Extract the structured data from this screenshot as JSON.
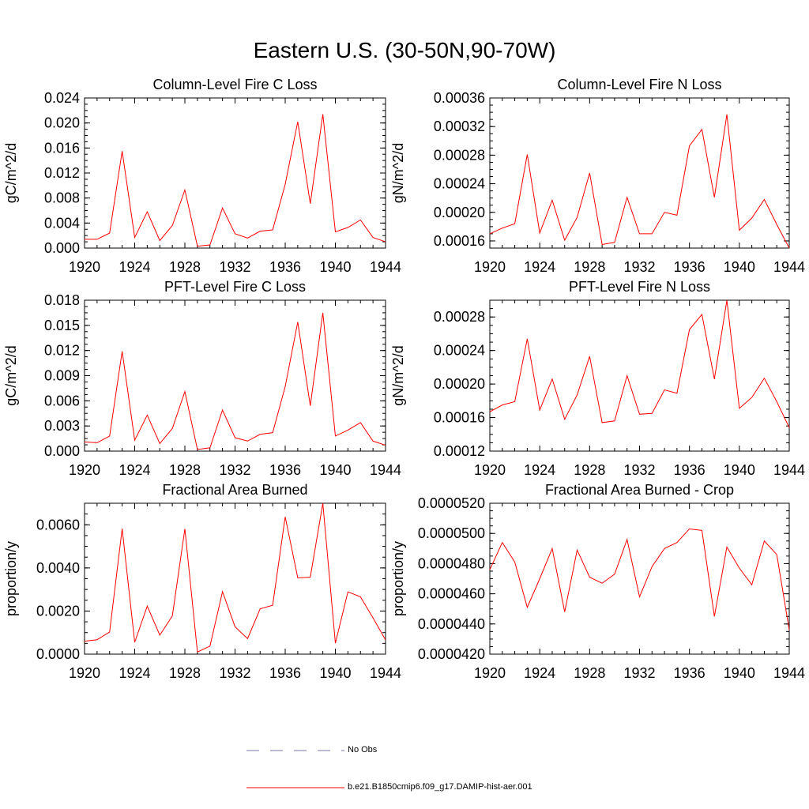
{
  "title": "Eastern U.S. (30-50N,90-70W)",
  "colors": {
    "model": "#ff0000",
    "obs": "#7777aa"
  },
  "legend": {
    "obs_label": "No Obs",
    "model_label": "b.e21.B1850cmip6.f09_g17.DAMIP-hist-aer.001"
  },
  "chart_data": [
    {
      "type": "line",
      "title": "Column-Level Fire C Loss",
      "ylabel": "gC/m^2/d",
      "xlim": [
        1920,
        1944
      ],
      "ylim": [
        0,
        0.024
      ],
      "xticks": [
        "1920",
        "1924",
        "1928",
        "1932",
        "1936",
        "1940",
        "1944"
      ],
      "yticks": [
        "0.000",
        "0.004",
        "0.008",
        "0.012",
        "0.016",
        "0.020",
        "0.024"
      ],
      "x": [
        1920,
        1921,
        1922,
        1923,
        1924,
        1925,
        1926,
        1927,
        1928,
        1929,
        1930,
        1931,
        1932,
        1933,
        1934,
        1935,
        1936,
        1937,
        1938,
        1939,
        1940,
        1941,
        1942,
        1943,
        1944
      ],
      "series": [
        {
          "values": [
            0.0014,
            0.0014,
            0.0024,
            0.0155,
            0.0017,
            0.0058,
            0.0012,
            0.0036,
            0.0093,
            0.0003,
            0.0005,
            0.0064,
            0.0023,
            0.0016,
            0.0027,
            0.0029,
            0.0102,
            0.0202,
            0.0071,
            0.0214,
            0.0026,
            0.0033,
            0.0045,
            0.0017,
            0.001
          ]
        }
      ]
    },
    {
      "type": "line",
      "title": "Column-Level Fire N Loss",
      "ylabel": "gN/m^2/d",
      "xlim": [
        1920,
        1944
      ],
      "ylim": [
        0.00015,
        0.00036
      ],
      "xticks": [
        "1920",
        "1924",
        "1928",
        "1932",
        "1936",
        "1940",
        "1944"
      ],
      "yticks": [
        "0.00016",
        "0.00020",
        "0.00024",
        "0.00028",
        "0.00032",
        "0.00036"
      ],
      "ytick_values": [
        0.00016,
        0.0002,
        0.00024,
        0.00028,
        0.00032,
        0.00036
      ],
      "x": [
        1920,
        1921,
        1922,
        1923,
        1924,
        1925,
        1926,
        1927,
        1928,
        1929,
        1930,
        1931,
        1932,
        1933,
        1934,
        1935,
        1936,
        1937,
        1938,
        1939,
        1940,
        1941,
        1942,
        1943,
        1944
      ],
      "series": [
        {
          "values": [
            0.00017,
            0.000178,
            0.000184,
            0.000281,
            0.000171,
            0.000217,
            0.000161,
            0.000193,
            0.000255,
            0.000155,
            0.000158,
            0.000221,
            0.00017,
            0.00017,
            0.0002,
            0.000196,
            0.000293,
            0.000316,
            0.000221,
            0.000337,
            0.000175,
            0.000192,
            0.000218,
            0.000183,
            0.00015
          ]
        }
      ]
    },
    {
      "type": "line",
      "title": "PFT-Level Fire C Loss",
      "ylabel": "gC/m^2/d",
      "xlim": [
        1920,
        1944
      ],
      "ylim": [
        0,
        0.018
      ],
      "xticks": [
        "1920",
        "1924",
        "1928",
        "1932",
        "1936",
        "1940",
        "1944"
      ],
      "yticks": [
        "0.000",
        "0.003",
        "0.006",
        "0.009",
        "0.012",
        "0.015",
        "0.018"
      ],
      "x": [
        1920,
        1921,
        1922,
        1923,
        1924,
        1925,
        1926,
        1927,
        1928,
        1929,
        1930,
        1931,
        1932,
        1933,
        1934,
        1935,
        1936,
        1937,
        1938,
        1939,
        1940,
        1941,
        1942,
        1943,
        1944
      ],
      "series": [
        {
          "values": [
            0.0011,
            0.001,
            0.0018,
            0.0119,
            0.0013,
            0.0043,
            0.0009,
            0.0027,
            0.0071,
            0.0002,
            0.0004,
            0.0049,
            0.0016,
            0.0012,
            0.002,
            0.0022,
            0.0077,
            0.0154,
            0.0054,
            0.0165,
            0.0018,
            0.0025,
            0.0034,
            0.0012,
            0.0007
          ]
        }
      ]
    },
    {
      "type": "line",
      "title": "PFT-Level Fire N Loss",
      "ylabel": "gN/m^2/d",
      "xlim": [
        1920,
        1944
      ],
      "ylim": [
        0.00012,
        0.0003
      ],
      "xticks": [
        "1920",
        "1924",
        "1928",
        "1932",
        "1936",
        "1940",
        "1944"
      ],
      "yticks": [
        "0.00012",
        "0.00016",
        "0.00020",
        "0.00024",
        "0.00028"
      ],
      "ytick_values": [
        0.00012,
        0.00016,
        0.0002,
        0.00024,
        0.00028
      ],
      "x": [
        1920,
        1921,
        1922,
        1923,
        1924,
        1925,
        1926,
        1927,
        1928,
        1929,
        1930,
        1931,
        1932,
        1933,
        1934,
        1935,
        1936,
        1937,
        1938,
        1939,
        1940,
        1941,
        1942,
        1943,
        1944
      ],
      "series": [
        {
          "values": [
            0.000167,
            0.000175,
            0.000179,
            0.000254,
            0.000169,
            0.000206,
            0.000158,
            0.000187,
            0.000233,
            0.000154,
            0.000156,
            0.00021,
            0.000164,
            0.000165,
            0.000193,
            0.000189,
            0.000265,
            0.000283,
            0.000206,
            0.0003,
            0.000171,
            0.000184,
            0.000207,
            0.000179,
            0.000148
          ]
        }
      ]
    },
    {
      "type": "line",
      "title": "Fractional Area Burned",
      "ylabel": "proportion/y",
      "xlim": [
        1920,
        1944
      ],
      "ylim": [
        0,
        0.007
      ],
      "xticks": [
        "1920",
        "1924",
        "1928",
        "1932",
        "1936",
        "1940",
        "1944"
      ],
      "yticks": [
        "0.0000",
        "0.0020",
        "0.0040",
        "0.0060"
      ],
      "ytick_values": [
        0,
        0.002,
        0.004,
        0.006
      ],
      "x": [
        1920,
        1921,
        1922,
        1923,
        1924,
        1925,
        1926,
        1927,
        1928,
        1929,
        1930,
        1931,
        1932,
        1933,
        1934,
        1935,
        1936,
        1937,
        1938,
        1939,
        1940,
        1941,
        1942,
        1943,
        1944
      ],
      "series": [
        {
          "values": [
            0.0006,
            0.00067,
            0.00103,
            0.00582,
            0.00055,
            0.00223,
            0.00088,
            0.00177,
            0.00581,
            0.0001,
            0.00037,
            0.0029,
            0.00127,
            0.00072,
            0.0021,
            0.00227,
            0.00637,
            0.00354,
            0.00357,
            0.007,
            0.00051,
            0.00289,
            0.00266,
            0.00168,
            0.00066
          ]
        }
      ]
    },
    {
      "type": "line",
      "title": "Fractional Area Burned - Crop",
      "ylabel": "proportion/y",
      "xlim": [
        1920,
        1944
      ],
      "ylim": [
        4.2e-05,
        5.2e-05
      ],
      "xticks": [
        "1920",
        "1924",
        "1928",
        "1932",
        "1936",
        "1940",
        "1944"
      ],
      "yticks": [
        "0.0000420",
        "0.0000440",
        "0.0000460",
        "0.0000480",
        "0.0000500",
        "0.0000520"
      ],
      "ytick_values": [
        4.2e-05,
        4.4e-05,
        4.6e-05,
        4.8e-05,
        5e-05,
        5.2e-05
      ],
      "x": [
        1920,
        1921,
        1922,
        1923,
        1924,
        1925,
        1926,
        1927,
        1928,
        1929,
        1930,
        1931,
        1932,
        1933,
        1934,
        1935,
        1936,
        1937,
        1938,
        1939,
        1940,
        1941,
        1942,
        1943,
        1944
      ],
      "series": [
        {
          "values": [
            4.76e-05,
            4.94e-05,
            4.81e-05,
            4.51e-05,
            4.7e-05,
            4.9e-05,
            4.48e-05,
            4.89e-05,
            4.71e-05,
            4.67e-05,
            4.73e-05,
            4.96e-05,
            4.58e-05,
            4.78e-05,
            4.9e-05,
            4.94e-05,
            5.03e-05,
            5.02e-05,
            4.45e-05,
            4.91e-05,
            4.77e-05,
            4.66e-05,
            4.95e-05,
            4.86e-05,
            4.36e-05
          ]
        }
      ]
    }
  ]
}
